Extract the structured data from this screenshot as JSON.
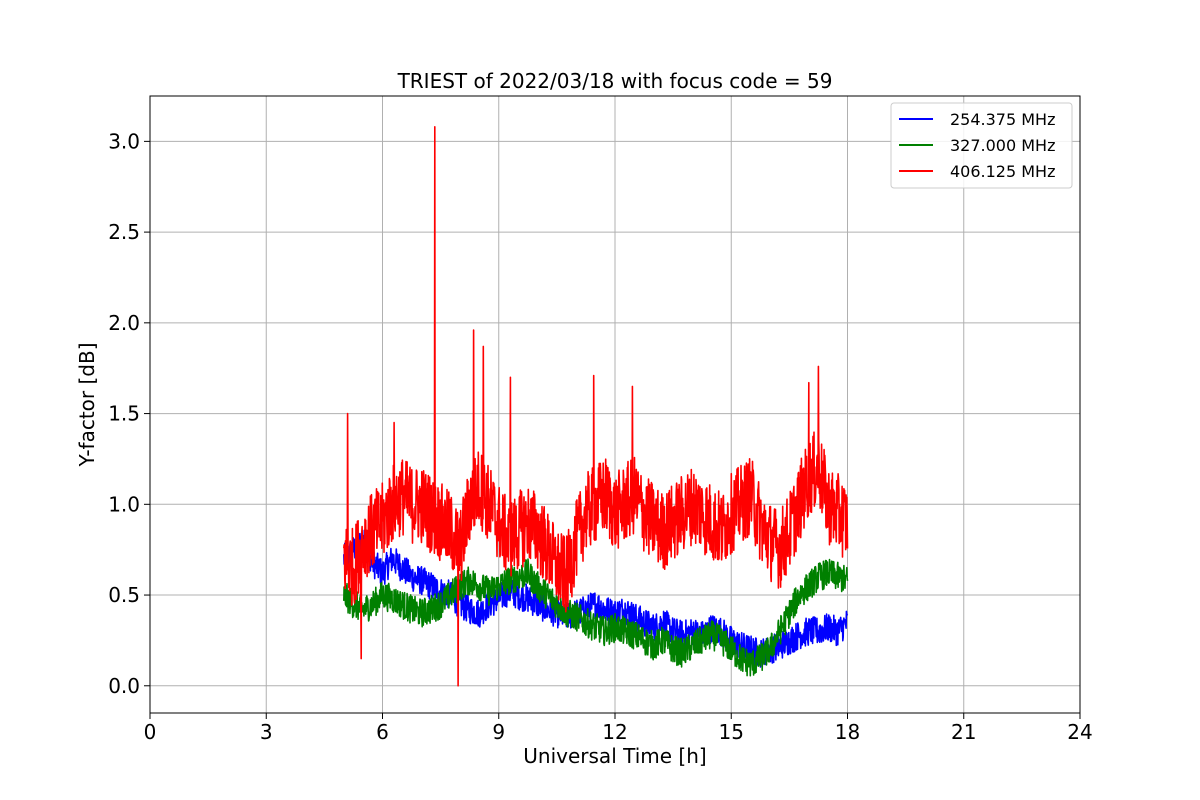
{
  "chart_data": {
    "type": "line",
    "title": "TRIEST of 2022/03/18 with focus code = 59",
    "xlabel": "Universal Time [h]",
    "ylabel": "Y-factor [dB]",
    "xlim": [
      0,
      24
    ],
    "ylim": [
      -0.15,
      3.25
    ],
    "xticks": [
      0,
      3,
      6,
      9,
      12,
      15,
      18,
      21,
      24
    ],
    "xtick_labels": [
      "0",
      "3",
      "6",
      "9",
      "12",
      "15",
      "18",
      "21",
      "24"
    ],
    "yticks": [
      0.0,
      0.5,
      1.0,
      1.5,
      2.0,
      2.5,
      3.0
    ],
    "ytick_labels": [
      "0.0",
      "0.5",
      "1.0",
      "1.5",
      "2.0",
      "2.5",
      "3.0"
    ],
    "grid": true,
    "legend_position": "top-right",
    "series": [
      {
        "name": "254.375 MHz",
        "color": "#0000ff",
        "x": [
          5.0,
          5.25,
          5.5,
          5.75,
          6.0,
          6.25,
          6.5,
          6.75,
          7.0,
          7.25,
          7.5,
          7.75,
          8.0,
          8.25,
          8.5,
          8.75,
          9.0,
          9.25,
          9.5,
          9.75,
          10.0,
          10.25,
          10.5,
          10.75,
          11.0,
          11.25,
          11.5,
          11.75,
          12.0,
          12.25,
          12.5,
          12.75,
          13.0,
          13.25,
          13.5,
          13.75,
          14.0,
          14.25,
          14.5,
          14.75,
          15.0,
          15.25,
          15.5,
          15.75,
          16.0,
          16.25,
          16.5,
          16.75,
          17.0,
          17.25,
          17.5,
          17.75,
          18.0
        ],
        "y": [
          0.7,
          0.75,
          0.8,
          0.68,
          0.62,
          0.7,
          0.65,
          0.6,
          0.58,
          0.55,
          0.52,
          0.5,
          0.45,
          0.42,
          0.4,
          0.45,
          0.48,
          0.52,
          0.5,
          0.48,
          0.45,
          0.42,
          0.4,
          0.38,
          0.4,
          0.42,
          0.45,
          0.42,
          0.4,
          0.42,
          0.38,
          0.35,
          0.32,
          0.35,
          0.3,
          0.28,
          0.3,
          0.28,
          0.32,
          0.3,
          0.25,
          0.22,
          0.2,
          0.18,
          0.2,
          0.22,
          0.25,
          0.28,
          0.3,
          0.3,
          0.32,
          0.3,
          0.35
        ],
        "amplitude": 0.08
      },
      {
        "name": "327.000 MHz",
        "color": "#008000",
        "x": [
          5.0,
          5.25,
          5.5,
          5.75,
          6.0,
          6.25,
          6.5,
          6.75,
          7.0,
          7.25,
          7.5,
          7.75,
          8.0,
          8.25,
          8.5,
          8.75,
          9.0,
          9.25,
          9.5,
          9.75,
          10.0,
          10.25,
          10.5,
          10.75,
          11.0,
          11.25,
          11.5,
          11.75,
          12.0,
          12.25,
          12.5,
          12.75,
          13.0,
          13.25,
          13.5,
          13.75,
          14.0,
          14.25,
          14.5,
          14.75,
          15.0,
          15.25,
          15.5,
          15.75,
          16.0,
          16.25,
          16.5,
          16.75,
          17.0,
          17.25,
          17.5,
          17.75,
          18.0
        ],
        "y": [
          0.5,
          0.45,
          0.42,
          0.45,
          0.5,
          0.48,
          0.45,
          0.42,
          0.4,
          0.42,
          0.45,
          0.5,
          0.55,
          0.58,
          0.55,
          0.52,
          0.55,
          0.58,
          0.6,
          0.62,
          0.55,
          0.5,
          0.45,
          0.4,
          0.38,
          0.35,
          0.32,
          0.3,
          0.32,
          0.3,
          0.28,
          0.25,
          0.22,
          0.25,
          0.2,
          0.18,
          0.22,
          0.25,
          0.28,
          0.25,
          0.2,
          0.15,
          0.12,
          0.15,
          0.2,
          0.3,
          0.4,
          0.5,
          0.55,
          0.6,
          0.62,
          0.6,
          0.58
        ],
        "amplitude": 0.08
      },
      {
        "name": "406.125 MHz",
        "color": "#ff0000",
        "x": [
          5.0,
          5.25,
          5.5,
          5.75,
          6.0,
          6.25,
          6.5,
          6.75,
          7.0,
          7.25,
          7.5,
          7.75,
          8.0,
          8.25,
          8.5,
          8.75,
          9.0,
          9.25,
          9.5,
          9.75,
          10.0,
          10.25,
          10.5,
          10.75,
          11.0,
          11.25,
          11.5,
          11.75,
          12.0,
          12.25,
          12.5,
          12.75,
          13.0,
          13.25,
          13.5,
          13.75,
          14.0,
          14.25,
          14.5,
          14.75,
          15.0,
          15.25,
          15.5,
          15.75,
          16.0,
          16.25,
          16.5,
          16.75,
          17.0,
          17.25,
          17.5,
          17.75,
          18.0
        ],
        "y": [
          0.7,
          0.65,
          0.8,
          0.85,
          0.9,
          1.0,
          1.05,
          1.0,
          1.0,
          0.95,
          0.9,
          0.85,
          0.75,
          1.0,
          1.1,
          1.0,
          0.9,
          0.8,
          0.85,
          0.9,
          0.85,
          0.75,
          0.65,
          0.6,
          0.8,
          0.95,
          1.0,
          1.05,
          0.95,
          1.0,
          1.05,
          0.95,
          0.9,
          0.85,
          0.9,
          0.95,
          1.0,
          0.95,
          0.9,
          0.85,
          0.95,
          1.0,
          1.05,
          0.9,
          0.8,
          0.75,
          0.85,
          1.0,
          1.15,
          1.2,
          1.0,
          0.95,
          0.9
        ],
        "amplitude": 0.22,
        "spikes": [
          {
            "x": 5.1,
            "y": 1.5
          },
          {
            "x": 5.45,
            "y": 0.15
          },
          {
            "x": 6.3,
            "y": 1.45
          },
          {
            "x": 7.35,
            "y": 3.08
          },
          {
            "x": 7.95,
            "y": 0.0
          },
          {
            "x": 8.35,
            "y": 1.96
          },
          {
            "x": 8.6,
            "y": 1.87
          },
          {
            "x": 9.3,
            "y": 1.7
          },
          {
            "x": 11.45,
            "y": 1.71
          },
          {
            "x": 12.45,
            "y": 1.65
          },
          {
            "x": 17.25,
            "y": 1.76
          },
          {
            "x": 17.0,
            "y": 1.67
          }
        ]
      }
    ]
  }
}
